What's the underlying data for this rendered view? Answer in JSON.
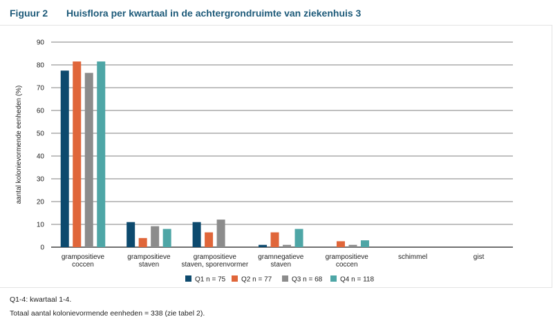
{
  "figure": {
    "number": "Figuur 2",
    "title": "Huisflora per kwartaal in de achtergrondruimte van ziekenhuis 3"
  },
  "chart_data": {
    "type": "bar",
    "ylabel": "aantal kolonievormende eenheden (%)",
    "xlabel": "",
    "ylim": [
      0,
      90
    ],
    "yticks": [
      0,
      10,
      20,
      30,
      40,
      50,
      60,
      70,
      80,
      90
    ],
    "grid": true,
    "legend_position": "bottom",
    "categories": [
      [
        "grampositieve",
        "coccen"
      ],
      [
        "grampositieve",
        "staven"
      ],
      [
        "grampositieve",
        "staven, sporenvormer"
      ],
      [
        "gramnegatieve",
        "staven"
      ],
      [
        "grampositieve",
        "coccen"
      ],
      [
        "schimmel"
      ],
      [
        "gist"
      ]
    ],
    "series": [
      {
        "name": "Q1 n = 75",
        "color": "#0d4a6e",
        "values": [
          77.5,
          11,
          11,
          1,
          0,
          0,
          0
        ]
      },
      {
        "name": "Q2 n = 77",
        "color": "#e0663a",
        "values": [
          81.5,
          4,
          6.5,
          6.5,
          2.6,
          0,
          0
        ]
      },
      {
        "name": "Q3 n = 68",
        "color": "#8c8c8c",
        "values": [
          76.5,
          9.2,
          12.1,
          1,
          1,
          0,
          0
        ]
      },
      {
        "name": "Q4 n = 118",
        "color": "#4ea6a6",
        "values": [
          81.5,
          8,
          0,
          8,
          3,
          0,
          0
        ]
      }
    ]
  },
  "notes": [
    "Q1-4: kwartaal 1-4.",
    "Totaal aantal kolonievormende eenheden = 338 (zie tabel 2)."
  ]
}
